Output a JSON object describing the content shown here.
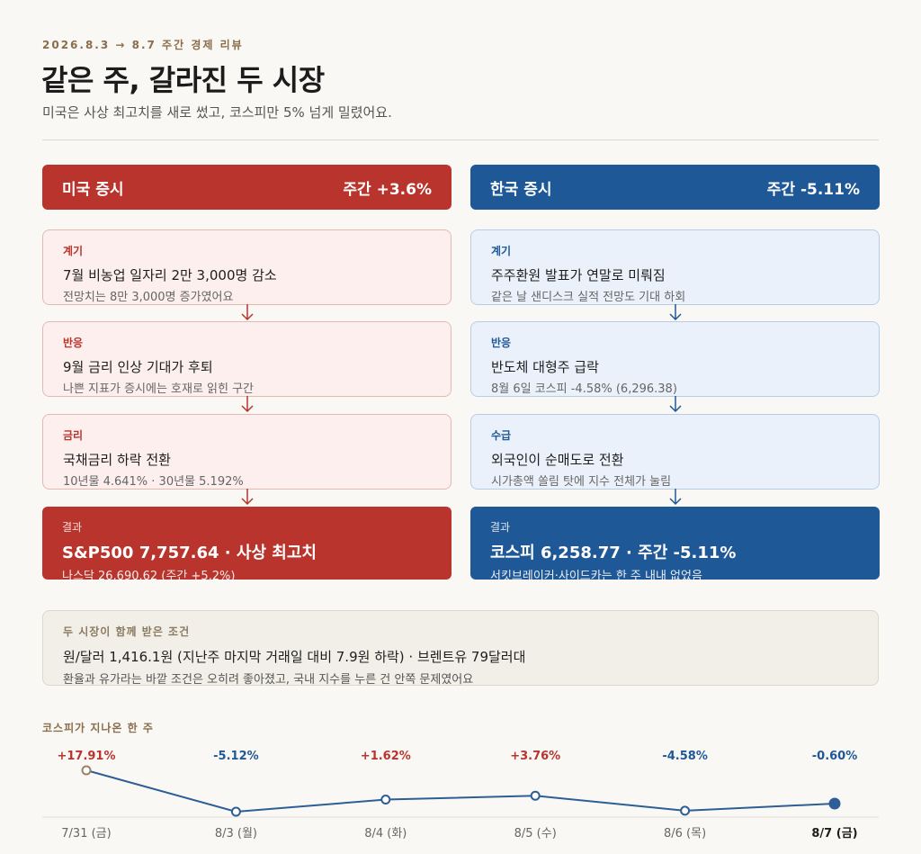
{
  "header": {
    "eyebrow": "2026.8.3 → 8.7 주간 경제 리뷰",
    "title": "같은 주, 갈라진 두 시장",
    "subtitle": "미국은 사상 최고치를 새로 썼고, 코스피만 5% 넘게 밀렸어요."
  },
  "us": {
    "label": "미국 증시",
    "weekly": "주간 +3.6%",
    "steps": [
      {
        "tag": "계기",
        "head": "7월 비농업 일자리 2만 3,000명 감소",
        "sub": "전망치는 8만 3,000명 증가였어요"
      },
      {
        "tag": "반응",
        "head": "9월 금리 인상 기대가 후퇴",
        "sub": "나쁜 지표가 증시에는 호재로 읽힌 구간"
      },
      {
        "tag": "금리",
        "head": "국채금리 하락 전환",
        "sub": "10년물 4.641% · 30년물 5.192%"
      }
    ],
    "result": {
      "tag": "결과",
      "head": "S&P500 7,757.64 · 사상 최고치",
      "sub": "나스닥 26,690.62 (주간 +5.2%)"
    }
  },
  "kr": {
    "label": "한국 증시",
    "weekly": "주간 -5.11%",
    "steps": [
      {
        "tag": "계기",
        "head": "주주환원 발표가 연말로 미뤄짐",
        "sub": "같은 날 샌디스크 실적 전망도 기대 하회"
      },
      {
        "tag": "반응",
        "head": "반도체 대형주 급락",
        "sub": "8월 6일 코스피 -4.58% (6,296.38)"
      },
      {
        "tag": "수급",
        "head": "외국인이 순매도로 전환",
        "sub": "시가총액 쏠림 탓에 지수 전체가 눌림"
      }
    ],
    "result": {
      "tag": "결과",
      "head": "코스피 6,258.77 · 주간 -5.11%",
      "sub": "서킷브레이커·사이드카는 한 주 내내 없었음"
    }
  },
  "shared": {
    "tag": "두 시장이 함께 받은 조건",
    "head": "원/달러 1,416.1원 (지난주 마지막 거래일 대비 7.9원 하락) · 브렌트유 79달러대",
    "sub": "환율과 유가라는 바깥 조건은 오히려 좋아졌고, 국내 지수를 누른 건 안쪽 문제였어요"
  },
  "chart_title": "코스피가 지나온 한 주",
  "colors": {
    "us_red": "#b8342c",
    "kr_blue": "#1f5896",
    "line": "#2d5e95",
    "first_point": "#9c8264",
    "label_up": "#b8342c",
    "label_down": "#1f5896"
  },
  "chart_data": {
    "type": "line",
    "title": "코스피가 지나온 한 주",
    "x": [
      "7/31 (금)",
      "8/3 (월)",
      "8/4 (화)",
      "8/5 (수)",
      "8/6 (목)",
      "8/7 (금)"
    ],
    "labels": [
      "+17.91%",
      "-5.12%",
      "+1.62%",
      "+3.76%",
      "-4.58%",
      "-0.60%"
    ],
    "values": [
      17.91,
      -5.12,
      1.62,
      3.76,
      -4.58,
      -0.6
    ],
    "highlight_last": true
  }
}
